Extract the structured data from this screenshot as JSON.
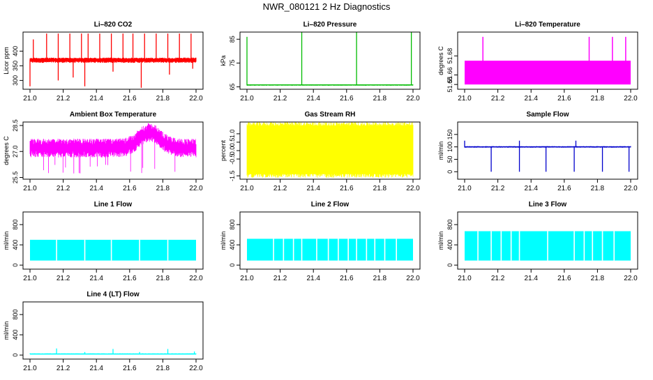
{
  "page_title": "NWR_080121  2 Hz Diagnostics",
  "x_ticks": [
    "21.0",
    "21.2",
    "21.4",
    "21.6",
    "21.8",
    "22.0"
  ],
  "chart_data": [
    {
      "type": "line",
      "title": "Li–820 CO2",
      "ylabel": "Licor ppm",
      "xlim": [
        21.0,
        22.0
      ],
      "ylim": [
        270,
        465
      ],
      "yticks": [
        "300",
        "350",
        "400"
      ],
      "color": "#ff0000",
      "series": [
        {
          "baseline": 370,
          "noise_low": 360,
          "noise_high": 378,
          "spikes": [
            [
              21.02,
              440
            ],
            [
              21.1,
              460
            ],
            [
              21.17,
              460
            ],
            [
              21.24,
              460
            ],
            [
              21.31,
              460
            ],
            [
              21.35,
              460
            ],
            [
              21.42,
              460
            ],
            [
              21.49,
              460
            ],
            [
              21.56,
              460
            ],
            [
              21.62,
              460
            ],
            [
              21.69,
              460
            ],
            [
              21.76,
              460
            ],
            [
              21.83,
              460
            ],
            [
              21.9,
              460
            ],
            [
              21.97,
              460
            ]
          ],
          "dips": [
            [
              21.0,
              280
            ],
            [
              21.17,
              300
            ],
            [
              21.26,
              310
            ],
            [
              21.33,
              280
            ],
            [
              21.5,
              330
            ],
            [
              21.67,
              275
            ],
            [
              21.84,
              320
            ],
            [
              21.98,
              340
            ]
          ]
        }
      ]
    },
    {
      "type": "line",
      "title": "Li–820 Pressure",
      "ylabel": "kPa",
      "xlim": [
        21.0,
        22.0
      ],
      "ylim": [
        64,
        88
      ],
      "yticks": [
        "65",
        "75",
        "85"
      ],
      "color": "#00bb00",
      "series": [
        {
          "baseline": 65.8,
          "noise_low": 65.5,
          "noise_high": 66.0,
          "spikes": [
            [
              21.0,
              86
            ],
            [
              21.33,
              88
            ],
            [
              21.66,
              88
            ],
            [
              21.99,
              88
            ]
          ],
          "dips": []
        }
      ]
    },
    {
      "type": "area",
      "title": "Li–820 Temperature",
      "ylabel": "degrees C",
      "xlim": [
        21.0,
        22.0
      ],
      "ylim": [
        51.645,
        51.705
      ],
      "yticks": [
        "51.65",
        "51.66",
        "51.68"
      ],
      "color": "#ff00ff",
      "series": [
        {
          "band_low": 51.65,
          "band_high": 51.675,
          "spikes": [
            [
              21.11,
              51.7
            ],
            [
              21.75,
              51.7
            ],
            [
              21.89,
              51.7
            ],
            [
              21.97,
              51.7
            ]
          ]
        }
      ]
    },
    {
      "type": "line",
      "title": "Ambient Box Temperature",
      "ylabel": "degrees C",
      "xlim": [
        21.0,
        22.0
      ],
      "ylim": [
        25.4,
        28.7
      ],
      "yticks": [
        "25.5",
        "27.0",
        "28.5"
      ],
      "color": "#ff00ff",
      "series": [
        {
          "center": 27.2,
          "band": 0.45,
          "bump_center": 21.72,
          "bump_height": 0.9,
          "dips_to": 25.7
        }
      ]
    },
    {
      "type": "area",
      "title": "Gas Stream RH",
      "ylabel": "percent",
      "xlim": [
        21.0,
        22.0
      ],
      "ylim": [
        -1.7,
        1.7
      ],
      "yticks": [
        "-1.5",
        "-0.5",
        "0.0",
        "0.5",
        "1.0"
      ],
      "color": "#ffff00",
      "series": [
        {
          "band_low": -1.4,
          "band_high": 1.5
        }
      ]
    },
    {
      "type": "line",
      "title": "Sample Flow",
      "ylabel": "ml/min",
      "xlim": [
        21.0,
        22.0
      ],
      "ylim": [
        -30,
        200
      ],
      "yticks": [
        "0",
        "50",
        "100",
        "150"
      ],
      "color": "#0000cc",
      "series": [
        {
          "baseline": 100,
          "noise_low": 97,
          "noise_high": 103,
          "spikes": [
            [
              21.0,
              125
            ],
            [
              21.33,
              125
            ],
            [
              21.67,
              125
            ]
          ],
          "dips": [
            [
              21.16,
              0
            ],
            [
              21.33,
              0
            ],
            [
              21.49,
              0
            ],
            [
              21.66,
              0
            ],
            [
              21.83,
              0
            ],
            [
              21.99,
              0
            ]
          ]
        }
      ]
    },
    {
      "type": "area",
      "title": "Line 1 Flow",
      "ylabel": "ml/min",
      "xlim": [
        21.0,
        22.0
      ],
      "ylim": [
        -80,
        1050
      ],
      "yticks": [
        "0",
        "400",
        "800"
      ],
      "color": "#00ffff",
      "series": [
        {
          "band_low": 90,
          "band_high": 500,
          "gaps": [
            21.16,
            21.33,
            21.49,
            21.66,
            21.83
          ]
        }
      ]
    },
    {
      "type": "area",
      "title": "Line 2 Flow",
      "ylabel": "ml/min",
      "xlim": [
        21.0,
        22.0
      ],
      "ylim": [
        -80,
        1050
      ],
      "yticks": [
        "0",
        "400",
        "800"
      ],
      "color": "#00ffff",
      "series": [
        {
          "band_low": 90,
          "band_high": 520,
          "gaps": [
            21.16,
            21.22,
            21.28,
            21.33,
            21.42,
            21.49,
            21.55,
            21.61,
            21.66,
            21.72,
            21.77,
            21.83,
            21.9
          ]
        }
      ]
    },
    {
      "type": "area",
      "title": "Line 3 Flow",
      "ylabel": "ml/min",
      "xlim": [
        21.0,
        22.0
      ],
      "ylim": [
        -80,
        1050
      ],
      "yticks": [
        "0",
        "400",
        "800"
      ],
      "color": "#00ffff",
      "series": [
        {
          "band_low": 90,
          "band_high": 670,
          "gaps": [
            21.08,
            21.16,
            21.22,
            21.28,
            21.33,
            21.5,
            21.66,
            21.72,
            21.77,
            21.83,
            21.9
          ]
        }
      ]
    },
    {
      "type": "line",
      "title": "Line 4 (LT) Flow",
      "ylabel": "ml/min",
      "xlim": [
        21.0,
        22.0
      ],
      "ylim": [
        -80,
        1050
      ],
      "yticks": [
        "0",
        "400",
        "800"
      ],
      "color": "#00ffff",
      "series": [
        {
          "baseline": 20,
          "noise_low": 15,
          "noise_high": 35,
          "spikes": [
            [
              21.16,
              130
            ],
            [
              21.33,
              60
            ],
            [
              21.5,
              120
            ],
            [
              21.66,
              60
            ],
            [
              21.83,
              120
            ],
            [
              21.99,
              70
            ]
          ],
          "dips": []
        }
      ]
    }
  ]
}
